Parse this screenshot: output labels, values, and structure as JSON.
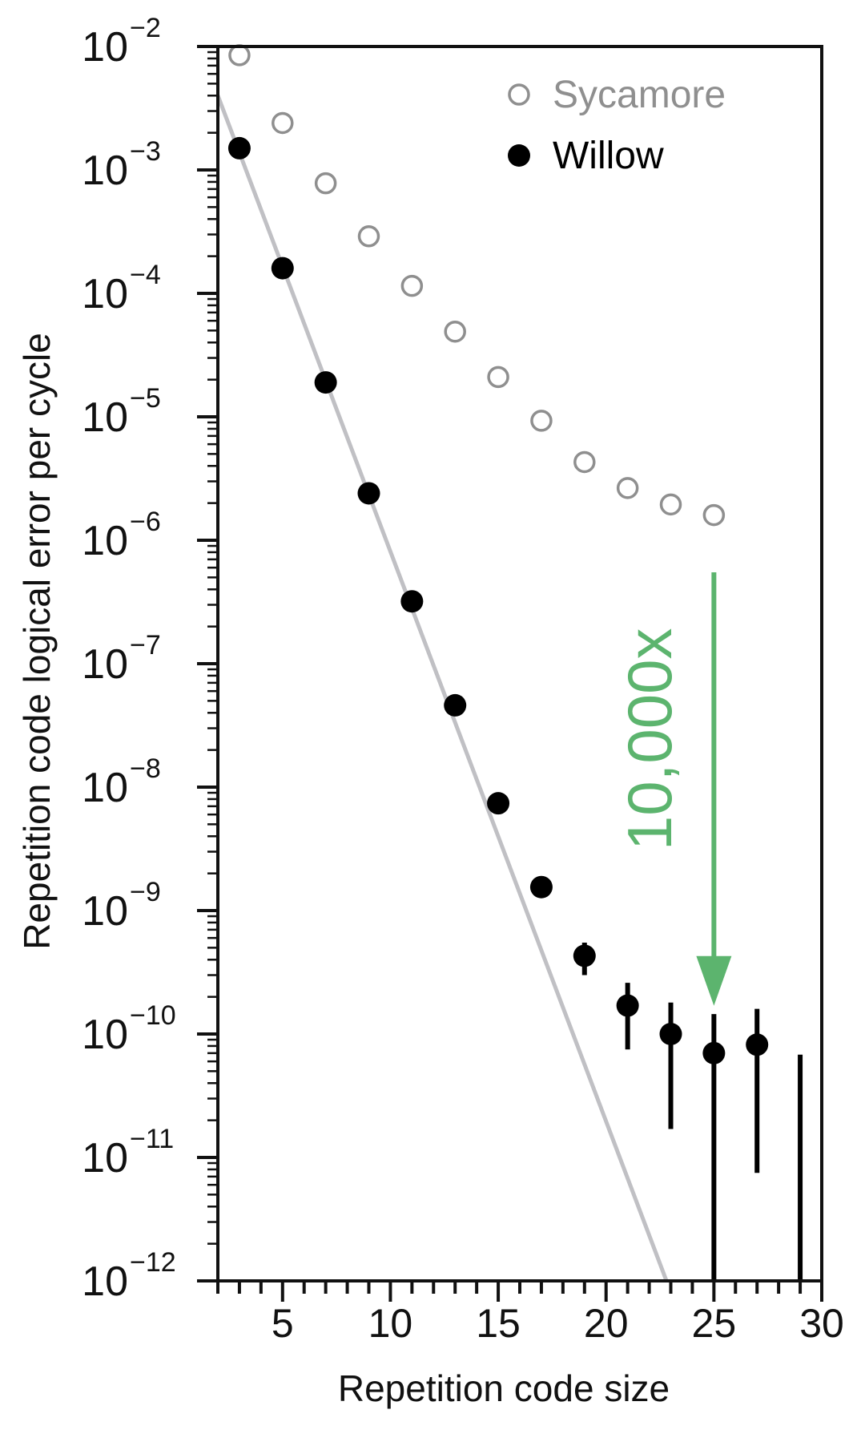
{
  "chart_data": {
    "type": "scatter",
    "title": "",
    "xlabel": "Repetition code size",
    "ylabel": "Repetition code logical error per cycle",
    "xlim": [
      2,
      30
    ],
    "ylim": [
      1e-12,
      0.01
    ],
    "yscale": "log",
    "x_ticks": [
      "5",
      "10",
      "15",
      "20",
      "25",
      "30"
    ],
    "y_ticks": [
      {
        "base": "10",
        "exp": "−2"
      },
      {
        "base": "10",
        "exp": "−3"
      },
      {
        "base": "10",
        "exp": "−4"
      },
      {
        "base": "10",
        "exp": "−5"
      },
      {
        "base": "10",
        "exp": "−6"
      },
      {
        "base": "10",
        "exp": "−7"
      },
      {
        "base": "10",
        "exp": "−8"
      },
      {
        "base": "10",
        "exp": "−9"
      },
      {
        "base": "10",
        "exp": "−10"
      },
      {
        "base": "10",
        "exp": "−11"
      },
      {
        "base": "10",
        "exp": "−12"
      }
    ],
    "legend_position": "top-right",
    "series": [
      {
        "name": "Sycamore",
        "marker": "open-circle",
        "color": "#8f8f8f",
        "x": [
          3,
          5,
          7,
          9,
          11,
          13,
          15,
          17,
          19,
          21,
          23,
          25
        ],
        "y": [
          0.0085,
          0.0024,
          0.00078,
          0.00029,
          0.000115,
          4.9e-05,
          2.1e-05,
          9.3e-06,
          4.3e-06,
          2.65e-06,
          1.95e-06,
          1.6e-06
        ]
      },
      {
        "name": "Willow",
        "marker": "filled-circle",
        "color": "#000000",
        "x": [
          3,
          5,
          7,
          9,
          11,
          13,
          15,
          17,
          19,
          21,
          23,
          25,
          27
        ],
        "y": [
          0.0015,
          0.00016,
          1.9e-05,
          2.4e-06,
          3.2e-07,
          4.6e-08,
          7.4e-09,
          1.55e-09,
          4.3e-10,
          1.7e-10,
          1e-10,
          7e-11,
          8.2e-11
        ],
        "err_low": [
          null,
          null,
          null,
          null,
          null,
          null,
          null,
          null,
          3e-10,
          7.5e-11,
          1.7e-11,
          1e-12,
          7.5e-12
        ],
        "err_high": [
          null,
          null,
          null,
          null,
          null,
          null,
          null,
          null,
          5.5e-10,
          2.6e-10,
          1.8e-10,
          1.45e-10,
          1.6e-10
        ]
      },
      {
        "name": "",
        "marker": "errorbar-only",
        "color": "#000000",
        "x": [
          29
        ],
        "err_low": [
          1e-12
        ],
        "err_high": [
          6.8e-11
        ]
      }
    ],
    "fit_line": {
      "color": "#c0c0c4",
      "points": [
        [
          2,
          0.004
        ],
        [
          22.8,
          1e-12
        ]
      ]
    },
    "annotation": {
      "text": "10,000x",
      "color": "#5cb46e",
      "arrow_x": 25,
      "arrow_from_y": 5.5e-07,
      "arrow_to_y": 1.8e-10
    }
  }
}
